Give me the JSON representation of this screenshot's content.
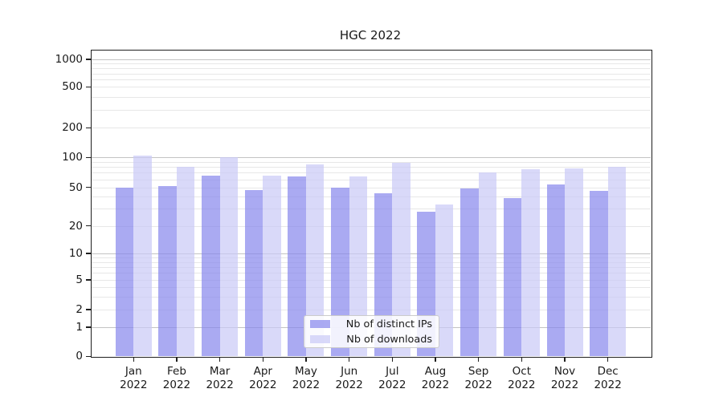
{
  "chart_data": {
    "type": "bar",
    "title": "HGC 2022",
    "categories": [
      "Jan",
      "Feb",
      "Mar",
      "Apr",
      "May",
      "Jun",
      "Jul",
      "Aug",
      "Sep",
      "Oct",
      "Nov",
      "Dec"
    ],
    "category_year": "2022",
    "series": [
      {
        "name": "Nb of distinct IPs",
        "color": "rgba(134,134,236,0.7)",
        "values": [
          50,
          51,
          66,
          47,
          64,
          50,
          43,
          28,
          49,
          39,
          53,
          46
        ]
      },
      {
        "name": "Nb of downloads",
        "color": "rgba(201,201,247,0.7)",
        "values": [
          105,
          81,
          101,
          66,
          85,
          64,
          88,
          33,
          70,
          76,
          78,
          81
        ]
      }
    ],
    "y_ticks": [
      0,
      1,
      2,
      5,
      10,
      20,
      50,
      100,
      200,
      500,
      1000
    ],
    "y_scale": "symlog",
    "ylim": [
      0,
      1300
    ],
    "xlabel": "",
    "ylabel": "",
    "grid": "horizontal, major and minor",
    "legend_position": "lower center (inside plot)"
  },
  "colors": {
    "background": "#ffffff",
    "axis": "#1f1f1f",
    "text": "#1a1a1a",
    "major_grid": "#c3c3c3",
    "minor_grid": "#e7e7e7",
    "bar_ips": "rgba(134,134,236,0.7)",
    "bar_downloads": "rgba(201,201,247,0.7)",
    "legend_border": "#cbcbcb"
  }
}
